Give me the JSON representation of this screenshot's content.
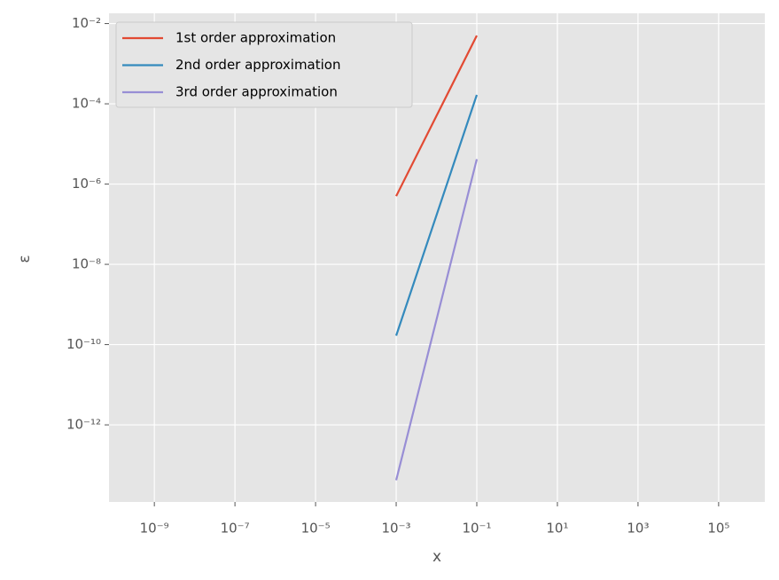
{
  "chart_data": {
    "type": "line",
    "xlabel": "x",
    "ylabel": "ε",
    "x": [
      0.001,
      0.01,
      0.1
    ],
    "series": [
      {
        "name": "1st order approximation",
        "color": "#E24A33",
        "values": [
          5e-07,
          5e-05,
          0.005
        ]
      },
      {
        "name": "2nd order approximation",
        "color": "#348ABD",
        "values": [
          1.67e-10,
          1.67e-07,
          0.000167
        ]
      },
      {
        "name": "3rd order approximation",
        "color": "#988ED5",
        "values": [
          4.17e-14,
          4.17e-10,
          4.17e-06
        ]
      }
    ],
    "xscale": "log",
    "yscale": "log",
    "xlim": [
      7.5e-11,
      1400000.0
    ],
    "ylim": [
      1.2e-14,
      0.018
    ],
    "xticks": [
      {
        "value": 1e-09,
        "label": "10⁻⁹"
      },
      {
        "value": 1e-07,
        "label": "10⁻⁷"
      },
      {
        "value": 1e-05,
        "label": "10⁻⁵"
      },
      {
        "value": 0.001,
        "label": "10⁻³"
      },
      {
        "value": 0.1,
        "label": "10⁻¹"
      },
      {
        "value": 10,
        "label": "10¹"
      },
      {
        "value": 1000,
        "label": "10³"
      },
      {
        "value": 100000,
        "label": "10⁵"
      }
    ],
    "yticks": [
      {
        "value": 0.01,
        "label": "10⁻²"
      },
      {
        "value": 0.0001,
        "label": "10⁻⁴"
      },
      {
        "value": 1e-06,
        "label": "10⁻⁶"
      },
      {
        "value": 1e-08,
        "label": "10⁻⁸"
      },
      {
        "value": 1e-10,
        "label": "10⁻¹⁰"
      },
      {
        "value": 1e-12,
        "label": "10⁻¹²"
      }
    ],
    "grid": true,
    "legend": "upper-left"
  }
}
